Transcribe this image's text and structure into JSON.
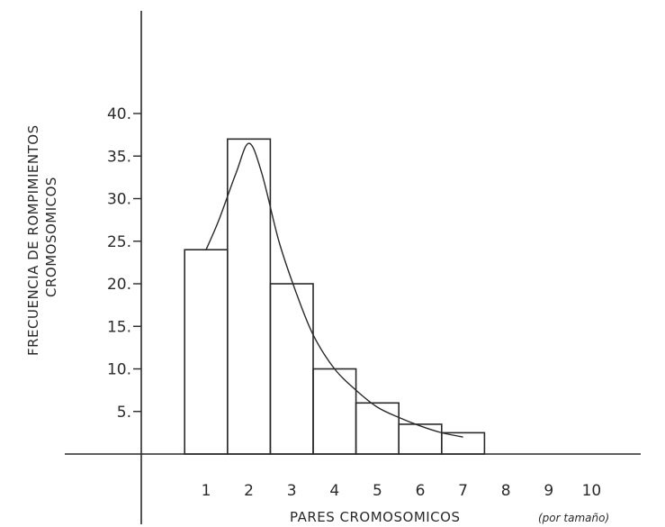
{
  "chart_data": {
    "type": "bar",
    "categories": [
      "1",
      "2",
      "3",
      "4",
      "5",
      "6",
      "7",
      "8",
      "9",
      "10"
    ],
    "values": [
      24,
      37,
      20,
      10,
      6,
      3.5,
      2.5,
      0,
      0,
      0
    ],
    "curve": {
      "x": [
        1,
        1.3,
        1.7,
        2,
        2.3,
        2.7,
        3.1,
        3.5,
        4,
        4.5,
        5,
        5.5,
        6,
        6.5,
        7
      ],
      "y": [
        24,
        27.5,
        33,
        36.5,
        33,
        25,
        19,
        14,
        10,
        7.5,
        5.5,
        4.3,
        3.3,
        2.5,
        2
      ]
    },
    "xlabel_main": "PARES CROMOSOMICOS",
    "xlabel_note": "(por tamaño)",
    "ylabel_line1": "FRECUENCIA DE ROMPIMIENTOS",
    "ylabel_line2": "CROMOSOMICOS",
    "yticks": [
      5,
      10,
      15,
      20,
      25,
      30,
      35,
      40
    ],
    "ylim": [
      0,
      40
    ],
    "xlim": [
      0.5,
      10.5
    ],
    "grid": false,
    "colors": {
      "ink": "#2a2a2a",
      "background": "#ffffff"
    }
  }
}
